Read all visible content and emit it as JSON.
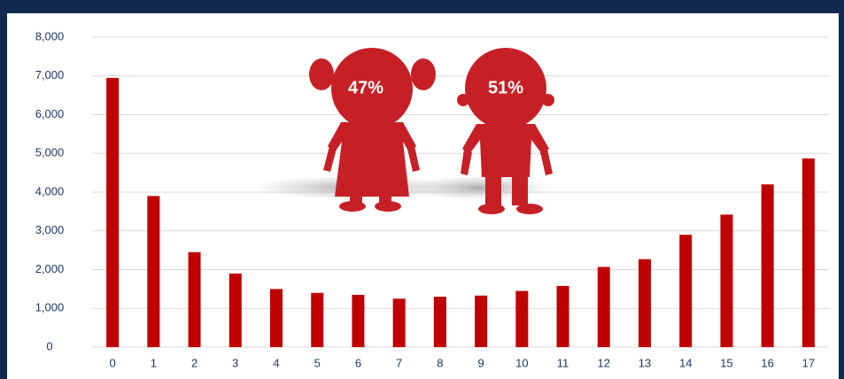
{
  "chart_data": {
    "type": "bar",
    "categories": [
      "0",
      "1",
      "2",
      "3",
      "4",
      "5",
      "6",
      "7",
      "8",
      "9",
      "10",
      "11",
      "12",
      "13",
      "14",
      "15",
      "16",
      "17"
    ],
    "values": [
      6950,
      3900,
      2450,
      1900,
      1500,
      1400,
      1350,
      1250,
      1300,
      1330,
      1450,
      1580,
      2070,
      2270,
      2900,
      3420,
      4200,
      4870
    ],
    "color": "#c00000",
    "ylim": [
      0,
      8000
    ],
    "yticks": [
      0,
      {
        "value": 1000,
        "label": "1,000"
      },
      {
        "value": 2000,
        "label": "2,000"
      },
      {
        "value": 3000,
        "label": "3,000"
      },
      {
        "value": 4000,
        "label": "4,000"
      },
      {
        "value": 5000,
        "label": "5,000"
      },
      {
        "value": 6000,
        "label": "6,000"
      },
      {
        "value": 7000,
        "label": "7,000"
      },
      {
        "value": 8000,
        "label": "8,000"
      }
    ],
    "grid": true,
    "annotations": [
      "47%",
      "51%"
    ]
  }
}
